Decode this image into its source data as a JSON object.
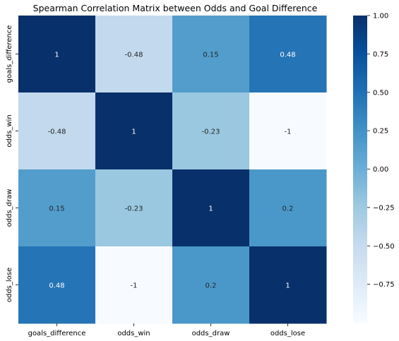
{
  "chart_data": {
    "type": "heatmap",
    "title": "Spearman Correlation Matrix between Odds and Goal Difference",
    "xlabel": "",
    "ylabel": "",
    "x_categories": [
      "goals_difference",
      "odds_win",
      "odds_draw",
      "odds_lose"
    ],
    "y_categories": [
      "goals_difference",
      "odds_win",
      "odds_draw",
      "odds_lose"
    ],
    "values": [
      [
        1,
        -0.48,
        0.15,
        0.48
      ],
      [
        -0.48,
        1,
        -0.23,
        -1
      ],
      [
        0.15,
        -0.23,
        1,
        0.2
      ],
      [
        0.48,
        -1,
        0.2,
        1
      ]
    ],
    "cell_labels": [
      [
        "1",
        "-0.48",
        "0.15",
        "0.48"
      ],
      [
        "-0.48",
        "1",
        "-0.23",
        "-1"
      ],
      [
        "0.15",
        "-0.23",
        "1",
        "0.2"
      ],
      [
        "0.48",
        "-1",
        "0.2",
        "1"
      ]
    ],
    "colormap": "Blues",
    "vmin": -1,
    "vmax": 1,
    "colorbar_ticks": [
      "1.00",
      "0.75",
      "0.50",
      "0.25",
      "0.00",
      "−0.25",
      "−0.50",
      "−0.75"
    ],
    "colorbar_tick_values": [
      1.0,
      0.75,
      0.5,
      0.25,
      0.0,
      -0.25,
      -0.5,
      -0.75
    ],
    "colors": {
      "low": "#f7fbff",
      "high": "#08306b"
    }
  }
}
